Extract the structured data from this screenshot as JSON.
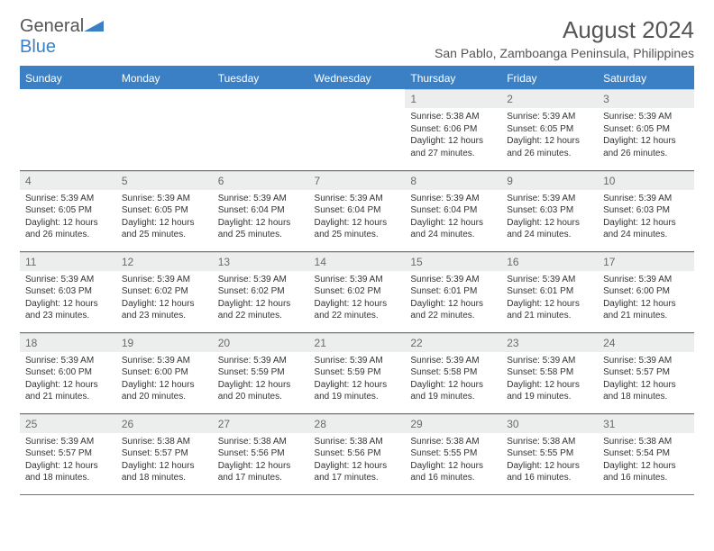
{
  "logo": {
    "text_gray": "General",
    "text_blue": "Blue"
  },
  "header": {
    "title": "August 2024",
    "location": "San Pablo, Zamboanga Peninsula, Philippines"
  },
  "colors": {
    "accent": "#3b7fc4",
    "header_bg": "#3b7fc4",
    "header_text": "#ffffff",
    "daynum_bg": "#eceded",
    "daynum_text": "#6a6a6a",
    "body_text": "#333333",
    "page_bg": "#ffffff"
  },
  "weekdays": [
    "Sunday",
    "Monday",
    "Tuesday",
    "Wednesday",
    "Thursday",
    "Friday",
    "Saturday"
  ],
  "weeks": [
    [
      {
        "n": "",
        "sr": "",
        "ss": "",
        "dl": ""
      },
      {
        "n": "",
        "sr": "",
        "ss": "",
        "dl": ""
      },
      {
        "n": "",
        "sr": "",
        "ss": "",
        "dl": ""
      },
      {
        "n": "",
        "sr": "",
        "ss": "",
        "dl": ""
      },
      {
        "n": "1",
        "sr": "Sunrise: 5:38 AM",
        "ss": "Sunset: 6:06 PM",
        "dl": "Daylight: 12 hours and 27 minutes."
      },
      {
        "n": "2",
        "sr": "Sunrise: 5:39 AM",
        "ss": "Sunset: 6:05 PM",
        "dl": "Daylight: 12 hours and 26 minutes."
      },
      {
        "n": "3",
        "sr": "Sunrise: 5:39 AM",
        "ss": "Sunset: 6:05 PM",
        "dl": "Daylight: 12 hours and 26 minutes."
      }
    ],
    [
      {
        "n": "4",
        "sr": "Sunrise: 5:39 AM",
        "ss": "Sunset: 6:05 PM",
        "dl": "Daylight: 12 hours and 26 minutes."
      },
      {
        "n": "5",
        "sr": "Sunrise: 5:39 AM",
        "ss": "Sunset: 6:05 PM",
        "dl": "Daylight: 12 hours and 25 minutes."
      },
      {
        "n": "6",
        "sr": "Sunrise: 5:39 AM",
        "ss": "Sunset: 6:04 PM",
        "dl": "Daylight: 12 hours and 25 minutes."
      },
      {
        "n": "7",
        "sr": "Sunrise: 5:39 AM",
        "ss": "Sunset: 6:04 PM",
        "dl": "Daylight: 12 hours and 25 minutes."
      },
      {
        "n": "8",
        "sr": "Sunrise: 5:39 AM",
        "ss": "Sunset: 6:04 PM",
        "dl": "Daylight: 12 hours and 24 minutes."
      },
      {
        "n": "9",
        "sr": "Sunrise: 5:39 AM",
        "ss": "Sunset: 6:03 PM",
        "dl": "Daylight: 12 hours and 24 minutes."
      },
      {
        "n": "10",
        "sr": "Sunrise: 5:39 AM",
        "ss": "Sunset: 6:03 PM",
        "dl": "Daylight: 12 hours and 24 minutes."
      }
    ],
    [
      {
        "n": "11",
        "sr": "Sunrise: 5:39 AM",
        "ss": "Sunset: 6:03 PM",
        "dl": "Daylight: 12 hours and 23 minutes."
      },
      {
        "n": "12",
        "sr": "Sunrise: 5:39 AM",
        "ss": "Sunset: 6:02 PM",
        "dl": "Daylight: 12 hours and 23 minutes."
      },
      {
        "n": "13",
        "sr": "Sunrise: 5:39 AM",
        "ss": "Sunset: 6:02 PM",
        "dl": "Daylight: 12 hours and 22 minutes."
      },
      {
        "n": "14",
        "sr": "Sunrise: 5:39 AM",
        "ss": "Sunset: 6:02 PM",
        "dl": "Daylight: 12 hours and 22 minutes."
      },
      {
        "n": "15",
        "sr": "Sunrise: 5:39 AM",
        "ss": "Sunset: 6:01 PM",
        "dl": "Daylight: 12 hours and 22 minutes."
      },
      {
        "n": "16",
        "sr": "Sunrise: 5:39 AM",
        "ss": "Sunset: 6:01 PM",
        "dl": "Daylight: 12 hours and 21 minutes."
      },
      {
        "n": "17",
        "sr": "Sunrise: 5:39 AM",
        "ss": "Sunset: 6:00 PM",
        "dl": "Daylight: 12 hours and 21 minutes."
      }
    ],
    [
      {
        "n": "18",
        "sr": "Sunrise: 5:39 AM",
        "ss": "Sunset: 6:00 PM",
        "dl": "Daylight: 12 hours and 21 minutes."
      },
      {
        "n": "19",
        "sr": "Sunrise: 5:39 AM",
        "ss": "Sunset: 6:00 PM",
        "dl": "Daylight: 12 hours and 20 minutes."
      },
      {
        "n": "20",
        "sr": "Sunrise: 5:39 AM",
        "ss": "Sunset: 5:59 PM",
        "dl": "Daylight: 12 hours and 20 minutes."
      },
      {
        "n": "21",
        "sr": "Sunrise: 5:39 AM",
        "ss": "Sunset: 5:59 PM",
        "dl": "Daylight: 12 hours and 19 minutes."
      },
      {
        "n": "22",
        "sr": "Sunrise: 5:39 AM",
        "ss": "Sunset: 5:58 PM",
        "dl": "Daylight: 12 hours and 19 minutes."
      },
      {
        "n": "23",
        "sr": "Sunrise: 5:39 AM",
        "ss": "Sunset: 5:58 PM",
        "dl": "Daylight: 12 hours and 19 minutes."
      },
      {
        "n": "24",
        "sr": "Sunrise: 5:39 AM",
        "ss": "Sunset: 5:57 PM",
        "dl": "Daylight: 12 hours and 18 minutes."
      }
    ],
    [
      {
        "n": "25",
        "sr": "Sunrise: 5:39 AM",
        "ss": "Sunset: 5:57 PM",
        "dl": "Daylight: 12 hours and 18 minutes."
      },
      {
        "n": "26",
        "sr": "Sunrise: 5:38 AM",
        "ss": "Sunset: 5:57 PM",
        "dl": "Daylight: 12 hours and 18 minutes."
      },
      {
        "n": "27",
        "sr": "Sunrise: 5:38 AM",
        "ss": "Sunset: 5:56 PM",
        "dl": "Daylight: 12 hours and 17 minutes."
      },
      {
        "n": "28",
        "sr": "Sunrise: 5:38 AM",
        "ss": "Sunset: 5:56 PM",
        "dl": "Daylight: 12 hours and 17 minutes."
      },
      {
        "n": "29",
        "sr": "Sunrise: 5:38 AM",
        "ss": "Sunset: 5:55 PM",
        "dl": "Daylight: 12 hours and 16 minutes."
      },
      {
        "n": "30",
        "sr": "Sunrise: 5:38 AM",
        "ss": "Sunset: 5:55 PM",
        "dl": "Daylight: 12 hours and 16 minutes."
      },
      {
        "n": "31",
        "sr": "Sunrise: 5:38 AM",
        "ss": "Sunset: 5:54 PM",
        "dl": "Daylight: 12 hours and 16 minutes."
      }
    ]
  ]
}
